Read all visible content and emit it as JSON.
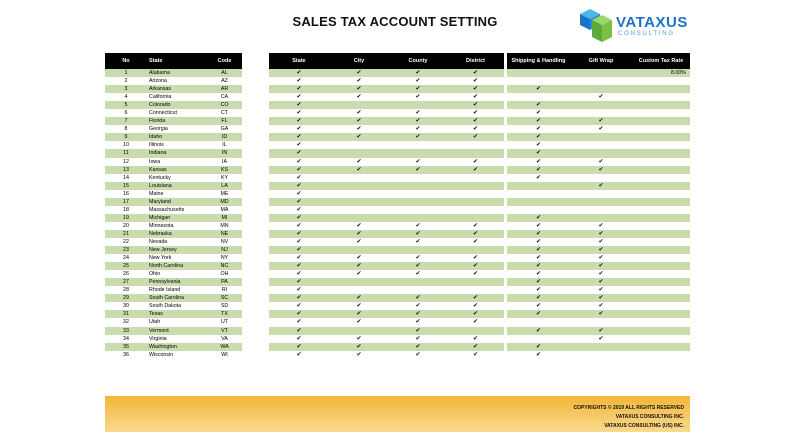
{
  "title": "SALES TAX ACCOUNT SETTING",
  "logo": {
    "name": "VATAXUS",
    "subtitle": "CONSULTING",
    "colors": {
      "blue": "#1a73c9",
      "lightblue": "#4db8e8",
      "green": "#7ac143"
    }
  },
  "headers": {
    "no": "No",
    "state": "State",
    "code": "Code",
    "s_state": "State",
    "city": "City",
    "county": "County",
    "district": "District",
    "shipping": "Shipping & Handling",
    "gift": "Gift Wrap",
    "custom": "Custom Tax Rate"
  },
  "check_symbol": "✔",
  "colors": {
    "header_bg": "#000000",
    "row_alt": "#c8dcae",
    "footer": "#f3b637"
  },
  "rows": [
    {
      "no": "1",
      "state": "Alabama",
      "code": "AL",
      "s": 1,
      "ci": 1,
      "co": 1,
      "d": 1,
      "sh": 0,
      "g": 0,
      "rate": "8.00%"
    },
    {
      "no": "2",
      "state": "Arizona",
      "code": "AZ",
      "s": 1,
      "ci": 1,
      "co": 1,
      "d": 1,
      "sh": 0,
      "g": 0,
      "rate": ""
    },
    {
      "no": "3",
      "state": "Arkansas",
      "code": "AR",
      "s": 1,
      "ci": 1,
      "co": 1,
      "d": 1,
      "sh": 1,
      "g": 0,
      "rate": ""
    },
    {
      "no": "4",
      "state": "California",
      "code": "CA",
      "s": 1,
      "ci": 1,
      "co": 1,
      "d": 1,
      "sh": 0,
      "g": 1,
      "rate": ""
    },
    {
      "no": "5",
      "state": "Colorado",
      "code": "CO",
      "s": 1,
      "ci": 0,
      "co": 0,
      "d": 1,
      "sh": 1,
      "g": 0,
      "rate": ""
    },
    {
      "no": "6",
      "state": "Connecticut",
      "code": "CT",
      "s": 1,
      "ci": 1,
      "co": 1,
      "d": 1,
      "sh": 1,
      "g": 0,
      "rate": ""
    },
    {
      "no": "7",
      "state": "Florida",
      "code": "FL",
      "s": 1,
      "ci": 1,
      "co": 1,
      "d": 1,
      "sh": 1,
      "g": 1,
      "rate": ""
    },
    {
      "no": "8",
      "state": "Georgia",
      "code": "GA",
      "s": 1,
      "ci": 1,
      "co": 1,
      "d": 1,
      "sh": 1,
      "g": 1,
      "rate": ""
    },
    {
      "no": "9",
      "state": "Idaho",
      "code": "ID",
      "s": 1,
      "ci": 1,
      "co": 1,
      "d": 1,
      "sh": 1,
      "g": 0,
      "rate": ""
    },
    {
      "no": "10",
      "state": "Illinois",
      "code": "IL",
      "s": 1,
      "ci": 0,
      "co": 0,
      "d": 0,
      "sh": 1,
      "g": 0,
      "rate": ""
    },
    {
      "no": "11",
      "state": "Indiana",
      "code": "IN",
      "s": 1,
      "ci": 0,
      "co": 0,
      "d": 0,
      "sh": 1,
      "g": 0,
      "rate": ""
    },
    {
      "no": "12",
      "state": "Iowa",
      "code": "IA",
      "s": 1,
      "ci": 1,
      "co": 1,
      "d": 1,
      "sh": 1,
      "g": 1,
      "rate": ""
    },
    {
      "no": "13",
      "state": "Kansas",
      "code": "KS",
      "s": 1,
      "ci": 1,
      "co": 1,
      "d": 1,
      "sh": 1,
      "g": 1,
      "rate": ""
    },
    {
      "no": "14",
      "state": "Kentucky",
      "code": "KY",
      "s": 1,
      "ci": 0,
      "co": 0,
      "d": 0,
      "sh": 1,
      "g": 0,
      "rate": ""
    },
    {
      "no": "15",
      "state": "Louisiana",
      "code": "LA",
      "s": 1,
      "ci": 0,
      "co": 0,
      "d": 0,
      "sh": 0,
      "g": 1,
      "rate": ""
    },
    {
      "no": "16",
      "state": "Maine",
      "code": "ME",
      "s": 1,
      "ci": 0,
      "co": 0,
      "d": 0,
      "sh": 0,
      "g": 0,
      "rate": ""
    },
    {
      "no": "17",
      "state": "Maryland",
      "code": "MD",
      "s": 1,
      "ci": 0,
      "co": 0,
      "d": 0,
      "sh": 0,
      "g": 0,
      "rate": ""
    },
    {
      "no": "18",
      "state": "Massachusetts",
      "code": "MA",
      "s": 1,
      "ci": 0,
      "co": 0,
      "d": 0,
      "sh": 0,
      "g": 0,
      "rate": ""
    },
    {
      "no": "19",
      "state": "Michigan",
      "code": "MI",
      "s": 1,
      "ci": 0,
      "co": 0,
      "d": 0,
      "sh": 1,
      "g": 0,
      "rate": ""
    },
    {
      "no": "20",
      "state": "Minnesota",
      "code": "MN",
      "s": 1,
      "ci": 1,
      "co": 1,
      "d": 1,
      "sh": 1,
      "g": 1,
      "rate": ""
    },
    {
      "no": "21",
      "state": "Nebraska",
      "code": "NE",
      "s": 1,
      "ci": 1,
      "co": 1,
      "d": 1,
      "sh": 1,
      "g": 1,
      "rate": ""
    },
    {
      "no": "22",
      "state": "Nevada",
      "code": "NV",
      "s": 1,
      "ci": 1,
      "co": 1,
      "d": 1,
      "sh": 1,
      "g": 1,
      "rate": ""
    },
    {
      "no": "23",
      "state": "New Jersey",
      "code": "NJ",
      "s": 1,
      "ci": 0,
      "co": 0,
      "d": 0,
      "sh": 1,
      "g": 1,
      "rate": ""
    },
    {
      "no": "24",
      "state": "New York",
      "code": "NY",
      "s": 1,
      "ci": 1,
      "co": 1,
      "d": 1,
      "sh": 1,
      "g": 1,
      "rate": ""
    },
    {
      "no": "25",
      "state": "North Carolina",
      "code": "NC",
      "s": 1,
      "ci": 1,
      "co": 1,
      "d": 1,
      "sh": 1,
      "g": 1,
      "rate": ""
    },
    {
      "no": "26",
      "state": "Ohio",
      "code": "OH",
      "s": 1,
      "ci": 1,
      "co": 1,
      "d": 1,
      "sh": 1,
      "g": 1,
      "rate": ""
    },
    {
      "no": "27",
      "state": "Pennsylvania",
      "code": "PA",
      "s": 1,
      "ci": 0,
      "co": 0,
      "d": 0,
      "sh": 1,
      "g": 1,
      "rate": ""
    },
    {
      "no": "28",
      "state": "Rhode Island",
      "code": "RI",
      "s": 1,
      "ci": 0,
      "co": 0,
      "d": 0,
      "sh": 1,
      "g": 1,
      "rate": ""
    },
    {
      "no": "29",
      "state": "South Carolina",
      "code": "SC",
      "s": 1,
      "ci": 1,
      "co": 1,
      "d": 1,
      "sh": 1,
      "g": 1,
      "rate": ""
    },
    {
      "no": "30",
      "state": "South Dakota",
      "code": "SD",
      "s": 1,
      "ci": 1,
      "co": 1,
      "d": 1,
      "sh": 1,
      "g": 1,
      "rate": ""
    },
    {
      "no": "31",
      "state": "Texas",
      "code": "TX",
      "s": 1,
      "ci": 1,
      "co": 1,
      "d": 1,
      "sh": 1,
      "g": 1,
      "rate": ""
    },
    {
      "no": "32",
      "state": "Utah",
      "code": "UT",
      "s": 1,
      "ci": 1,
      "co": 1,
      "d": 1,
      "sh": 0,
      "g": 0,
      "rate": ""
    },
    {
      "no": "33",
      "state": "Vermont",
      "code": "VT",
      "s": 1,
      "ci": 0,
      "co": 1,
      "d": 0,
      "sh": 1,
      "g": 1,
      "rate": ""
    },
    {
      "no": "34",
      "state": "Virginia",
      "code": "VA",
      "s": 1,
      "ci": 1,
      "co": 1,
      "d": 1,
      "sh": 0,
      "g": 1,
      "rate": ""
    },
    {
      "no": "35",
      "state": "Washington",
      "code": "WA",
      "s": 1,
      "ci": 1,
      "co": 1,
      "d": 1,
      "sh": 1,
      "g": 0,
      "rate": ""
    },
    {
      "no": "36",
      "state": "Wisconsin",
      "code": "WI",
      "s": 1,
      "ci": 1,
      "co": 1,
      "d": 1,
      "sh": 1,
      "g": 0,
      "rate": ""
    }
  ],
  "footer": {
    "line1": "COPYRIGHTS © 2019 ALL RIGHTS RESERVED",
    "line2": "VATAXUS CONSULTING INC.",
    "line3": "VATAXUS CONSULTING (US) INC."
  }
}
